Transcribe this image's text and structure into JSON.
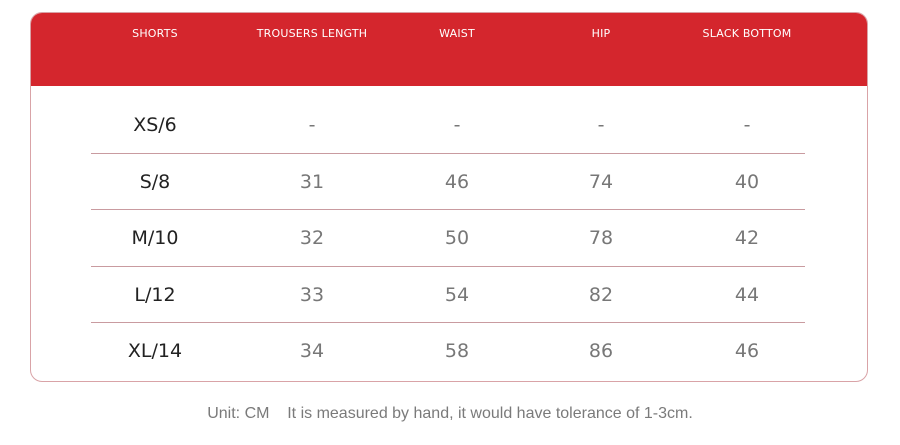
{
  "table": {
    "header": [
      "SHORTS",
      "TROUSERS LENGTH",
      "WAIST",
      "HIP",
      "SLACK BOTTOM"
    ],
    "rows": [
      [
        "XS/6",
        "-",
        "-",
        "-",
        "-"
      ],
      [
        "S/8",
        31,
        46,
        74,
        40
      ],
      [
        "M/10",
        32,
        50,
        78,
        42
      ],
      [
        "L/12",
        33,
        54,
        82,
        44
      ],
      [
        "XL/14",
        34,
        58,
        86,
        46
      ]
    ]
  },
  "note": "Unit: CM    It is measured by hand, it would have tolerance of 1-3cm."
}
